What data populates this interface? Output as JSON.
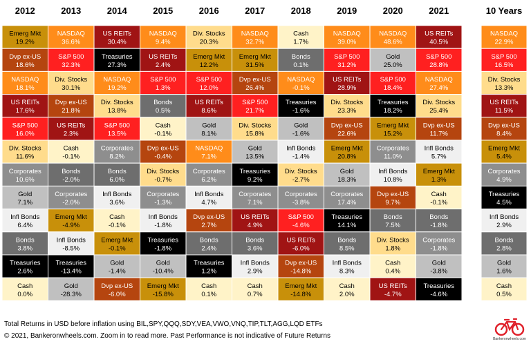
{
  "chart_data": {
    "type": "table",
    "title": "",
    "columns": [
      "2012",
      "2013",
      "2014",
      "2015",
      "2016",
      "2017",
      "2018",
      "2019",
      "2020",
      "2021"
    ],
    "summary_column": "10 Years",
    "ranks": [
      [
        [
          "Emerg Mkt",
          "19.2%"
        ],
        [
          "NASDAQ",
          "36.6%"
        ],
        [
          "US REITs",
          "30.4%"
        ],
        [
          "NASDAQ",
          "9.4%"
        ],
        [
          "Div. Stocks",
          "20.3%"
        ],
        [
          "NASDAQ",
          "32.7%"
        ],
        [
          "Cash",
          "1.7%"
        ],
        [
          "NASDAQ",
          "39.0%"
        ],
        [
          "NASDAQ",
          "48.6%"
        ],
        [
          "US REITs",
          "40.5%"
        ]
      ],
      [
        [
          "Dvp ex-US",
          "18.6%"
        ],
        [
          "S&P 500",
          "32.3%"
        ],
        [
          "Treasuries",
          "27.3%"
        ],
        [
          "US REITs",
          "2.4%"
        ],
        [
          "Emerg Mkt",
          "12.2%"
        ],
        [
          "Emerg Mkt",
          "31.5%"
        ],
        [
          "Bonds",
          "0.1%"
        ],
        [
          "S&P 500",
          "31.2%"
        ],
        [
          "Gold",
          "25.0%"
        ],
        [
          "S&P 500",
          "28.8%"
        ]
      ],
      [
        [
          "NASDAQ",
          "18.1%"
        ],
        [
          "Div. Stocks",
          "30.1%"
        ],
        [
          "NASDAQ",
          "19.2%"
        ],
        [
          "S&P 500",
          "1.3%"
        ],
        [
          "S&P 500",
          "12.0%"
        ],
        [
          "Dvp ex-US",
          "26.4%"
        ],
        [
          "NASDAQ",
          "-0.1%"
        ],
        [
          "US REITs",
          "28.9%"
        ],
        [
          "S&P 500",
          "18.4%"
        ],
        [
          "NASDAQ",
          "27.4%"
        ]
      ],
      [
        [
          "US REITs",
          "17.6%"
        ],
        [
          "Dvp ex-US",
          "21.8%"
        ],
        [
          "Div. Stocks",
          "13.8%"
        ],
        [
          "Bonds",
          "0.5%"
        ],
        [
          "US REITs",
          "8.6%"
        ],
        [
          "S&P 500",
          "21.7%"
        ],
        [
          "Treasuries",
          "-1.6%"
        ],
        [
          "Div. Stocks",
          "23.3%"
        ],
        [
          "Treasuries",
          "18.2%"
        ],
        [
          "Div. Stocks",
          "25.4%"
        ]
      ],
      [
        [
          "S&P 500",
          "16.0%"
        ],
        [
          "US REITs",
          "2.3%"
        ],
        [
          "S&P 500",
          "13.5%"
        ],
        [
          "Cash",
          "-0.1%"
        ],
        [
          "Gold",
          "8.1%"
        ],
        [
          "Div. Stocks",
          "15.8%"
        ],
        [
          "Gold",
          "-1.6%"
        ],
        [
          "Dvp ex-US",
          "22.6%"
        ],
        [
          "Emerg Mkt",
          "15.2%"
        ],
        [
          "Dvp ex-US",
          "11.7%"
        ]
      ],
      [
        [
          "Div. Stocks",
          "11.6%"
        ],
        [
          "Cash",
          "-0.1%"
        ],
        [
          "Corporates",
          "8.2%"
        ],
        [
          "Dvp ex-US",
          "-0.4%"
        ],
        [
          "NASDAQ",
          "7.1%"
        ],
        [
          "Gold",
          "13.5%"
        ],
        [
          "Infl Bonds",
          "-1.4%"
        ],
        [
          "Emerg Mkt",
          "20.8%"
        ],
        [
          "Corporates",
          "11.0%"
        ],
        [
          "Infl Bonds",
          "5.7%"
        ]
      ],
      [
        [
          "Corporates",
          "10.6%"
        ],
        [
          "Bonds",
          "-2.0%"
        ],
        [
          "Bonds",
          "6.0%"
        ],
        [
          "Div. Stocks",
          "-0.7%"
        ],
        [
          "Corporates",
          "6.2%"
        ],
        [
          "Treasuries",
          "9.2%"
        ],
        [
          "Div. Stocks",
          "-2.7%"
        ],
        [
          "Gold",
          "18.3%"
        ],
        [
          "Infl Bonds",
          "10.8%"
        ],
        [
          "Emerg Mkt",
          "1.3%"
        ]
      ],
      [
        [
          "Gold",
          "7.1%"
        ],
        [
          "Corporates",
          "-2.0%"
        ],
        [
          "Infl Bonds",
          "3.6%"
        ],
        [
          "Corporates",
          "-1.3%"
        ],
        [
          "Infl Bonds",
          "4.7%"
        ],
        [
          "Corporates",
          "7.1%"
        ],
        [
          "Corporates",
          "-3.8%"
        ],
        [
          "Corporates",
          "17.4%"
        ],
        [
          "Dvp ex-US",
          "9.7%"
        ],
        [
          "Cash",
          "-0.1%"
        ]
      ],
      [
        [
          "Infl Bonds",
          "6.4%"
        ],
        [
          "Emerg Mkt",
          "-4.9%"
        ],
        [
          "Cash",
          "-0.1%"
        ],
        [
          "Infl Bonds",
          "-1.8%"
        ],
        [
          "Dvp ex-US",
          "2.7%"
        ],
        [
          "US REITs",
          "4.9%"
        ],
        [
          "S&P 500",
          "-4.6%"
        ],
        [
          "Treasuries",
          "14.1%"
        ],
        [
          "Bonds",
          "7.5%"
        ],
        [
          "Bonds",
          "-1.8%"
        ]
      ],
      [
        [
          "Bonds",
          "3.8%"
        ],
        [
          "Infl Bonds",
          "-8.5%"
        ],
        [
          "Emerg Mkt",
          "-0.1%"
        ],
        [
          "Treasuries",
          "-1.8%"
        ],
        [
          "Bonds",
          "2.4%"
        ],
        [
          "Bonds",
          "3.6%"
        ],
        [
          "US REITs",
          "-6.0%"
        ],
        [
          "Bonds",
          "8.5%"
        ],
        [
          "Div. Stocks",
          "1.8%"
        ],
        [
          "Corporates",
          "-1.8%"
        ]
      ],
      [
        [
          "Treasuries",
          "2.6%"
        ],
        [
          "Treasuries",
          "-13.4%"
        ],
        [
          "Gold",
          "-1.4%"
        ],
        [
          "Gold",
          "-10.4%"
        ],
        [
          "Treasuries",
          "1.2%"
        ],
        [
          "Infl Bonds",
          "2.9%"
        ],
        [
          "Dvp ex-US",
          "-14.8%"
        ],
        [
          "Infl Bonds",
          "8.3%"
        ],
        [
          "Cash",
          "0.4%"
        ],
        [
          "Gold",
          "-3.8%"
        ]
      ],
      [
        [
          "Cash",
          "0.0%"
        ],
        [
          "Gold",
          "-28.3%"
        ],
        [
          "Dvp ex-US",
          "-6.0%"
        ],
        [
          "Emerg Mkt",
          "-15.8%"
        ],
        [
          "Cash",
          "0.1%"
        ],
        [
          "Cash",
          "0.7%"
        ],
        [
          "Emerg Mkt",
          "-14.8%"
        ],
        [
          "Cash",
          "2.0%"
        ],
        [
          "US REITs",
          "-4.7%"
        ],
        [
          "Treasuries",
          "-4.6%"
        ]
      ]
    ],
    "summary": [
      [
        "NASDAQ",
        "22.9%"
      ],
      [
        "S&P 500",
        "16.5%"
      ],
      [
        "Div. Stocks",
        "13.3%"
      ],
      [
        "US REITs",
        "11.5%"
      ],
      [
        "Dvp ex-US",
        "8.4%"
      ],
      [
        "Emerg Mkt",
        "5.4%"
      ],
      [
        "Corporates",
        "4.9%"
      ],
      [
        "Treasuries",
        "4.5%"
      ],
      [
        "Infl Bonds",
        "2.9%"
      ],
      [
        "Bonds",
        "2.8%"
      ],
      [
        "Gold",
        "1.6%"
      ],
      [
        "Cash",
        "0.5%"
      ]
    ],
    "asset_colors": {
      "NASDAQ": {
        "bg": "#ff8c1a",
        "fg": "#ffffff"
      },
      "S&P 500": {
        "bg": "#ff2020",
        "fg": "#ffffff"
      },
      "US REITs": {
        "bg": "#a01414",
        "fg": "#ffffff"
      },
      "Emerg Mkt": {
        "bg": "#c8900a",
        "fg": "#000000"
      },
      "Dvp ex-US": {
        "bg": "#b5450f",
        "fg": "#ffffff"
      },
      "Div. Stocks": {
        "bg": "#ffdc8c",
        "fg": "#000000"
      },
      "Treasuries": {
        "bg": "#000000",
        "fg": "#ffffff"
      },
      "Bonds": {
        "bg": "#6e6e6e",
        "fg": "#ffffff"
      },
      "Corporates": {
        "bg": "#8e8e8e",
        "fg": "#ffffff"
      },
      "Gold": {
        "bg": "#c0c0c0",
        "fg": "#000000"
      },
      "Infl Bonds": {
        "bg": "#f0f0f0",
        "fg": "#000000"
      },
      "Cash": {
        "bg": "#fff3c8",
        "fg": "#000000"
      }
    }
  },
  "footer": {
    "line1": "Total Returns in USD before inflation using BIL,SPY,QQQ,SDY,VEA,VWO,VNQ,TIP,TLT,AGG,LQD ETFs",
    "line2": "© 2021, Bankeronwheels.com. Zoom in to read more. Past Performance is not indicative of Future Returns"
  },
  "logo": {
    "icon": "bicycle-icon",
    "site": "Bankeronwheels.com",
    "color": "#e0202a"
  }
}
